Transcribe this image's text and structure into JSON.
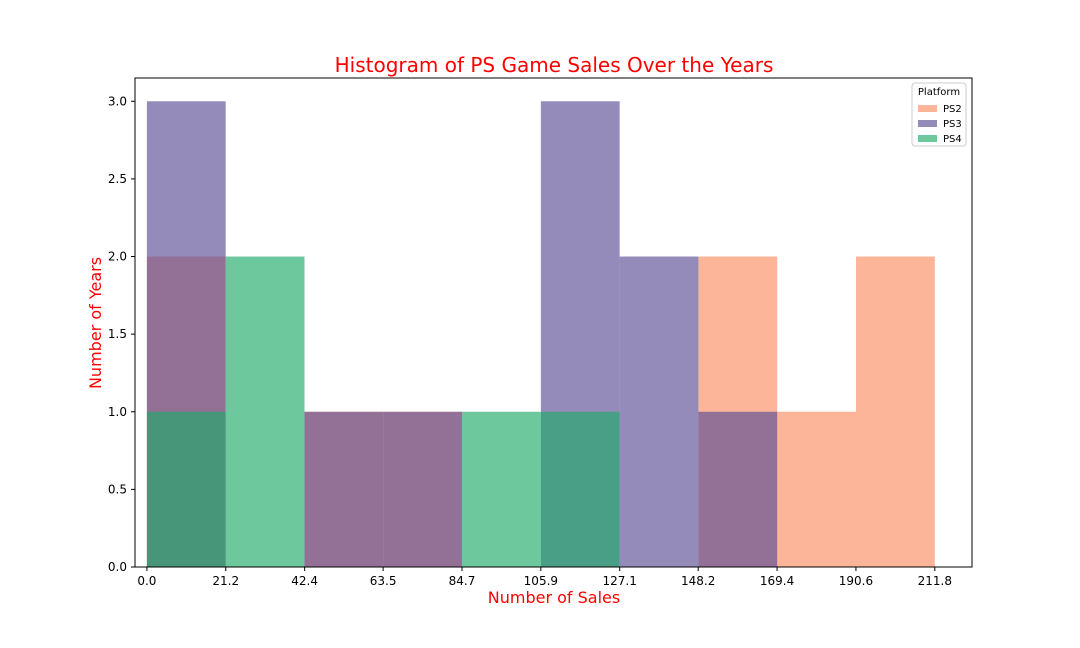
{
  "chart_data": {
    "type": "bar",
    "title": "Histogram of PS Game Sales Over the Years",
    "xlabel": "Number of Sales",
    "ylabel": "Number of Years",
    "x_ticks": [
      "0.0",
      "21.2",
      "42.4",
      "63.5",
      "84.7",
      "105.9",
      "127.1",
      "148.2",
      "169.4",
      "190.6",
      "211.8"
    ],
    "y_ticks": [
      "0.0",
      "0.5",
      "1.0",
      "1.5",
      "2.0",
      "2.5",
      "3.0"
    ],
    "bin_edges": [
      0.0,
      21.18,
      42.36,
      63.54,
      84.72,
      105.9,
      127.08,
      148.26,
      169.44,
      190.62,
      211.8
    ],
    "xlim": [
      -3.2,
      221.8
    ],
    "ylim": [
      0,
      3.15
    ],
    "grid": false,
    "legend": {
      "title": "Platform",
      "placement": "top-right"
    },
    "title_color": "#ff0000",
    "label_color": "#ff0000",
    "series": [
      {
        "name": "PS2",
        "color": "#fc8d62",
        "values": [
          2,
          0,
          1,
          1,
          0,
          0,
          0,
          2,
          1,
          2
        ]
      },
      {
        "name": "PS3",
        "color": "#5b4d96",
        "values": [
          3,
          0,
          1,
          1,
          0,
          3,
          2,
          1,
          0,
          0
        ]
      },
      {
        "name": "PS4",
        "color": "#1faa6a",
        "values": [
          1,
          2,
          0,
          0,
          1,
          1,
          0,
          0,
          0,
          0
        ]
      }
    ]
  }
}
